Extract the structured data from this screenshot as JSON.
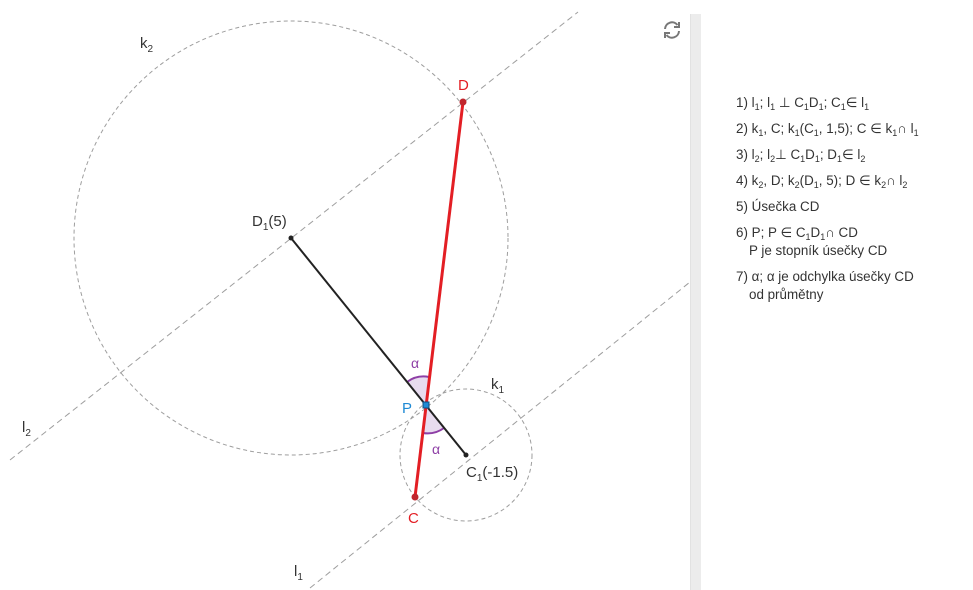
{
  "canvas": {
    "labels": {
      "k2": {
        "base": "k",
        "sub": "2"
      },
      "k1": {
        "base": "k",
        "sub": "1"
      },
      "l2": {
        "base": "l",
        "sub": "2"
      },
      "l1": {
        "base": "l",
        "sub": "1"
      },
      "D": "D",
      "C": "C",
      "P": "P",
      "alpha_top": "α",
      "alpha_bottom": "α",
      "D1": {
        "base": "D",
        "sub": "1",
        "rest": "(5)"
      },
      "C1": {
        "base": "C",
        "sub": "1",
        "rest": "(-1.5)"
      }
    },
    "colors": {
      "segment_cd": "#e31e24",
      "point_cd": "#c0262d",
      "point_p": "#1f8ad4",
      "label_p": "#1f8ad4",
      "angle": "#8e3fa6",
      "angle_fill": "#d9c6e2",
      "dashed": "#9e9e9e",
      "segment_c1d1": "#222222"
    }
  },
  "toolbar": {
    "refresh_icon": "refresh-icon"
  },
  "steps": {
    "s1": {
      "n": "1)",
      "p1": "l",
      "s1": "1",
      "p2": "; l",
      "s2": "1",
      "p3": "⊥ C",
      "s3": "1",
      "p4": "D",
      "s4": "1",
      "p5": "; C",
      "s5": "1",
      "p6": "∈ l",
      "s6": "1"
    },
    "s2": {
      "n": "2)",
      "p1": "k",
      "s1": "1",
      "p2": ", C; k",
      "s2": "1",
      "p3": "(C",
      "s3": "1",
      "p4": ", 1,5); C ∈ k",
      "s4": "1",
      "p5": "∩ l",
      "s5": "1"
    },
    "s3": {
      "n": "3)",
      "p1": "l",
      "s1": "2",
      "p2": "; l",
      "s2": "2",
      "p3": "⊥ C",
      "s3": "1",
      "p4": "D",
      "s4": "1",
      "p5": "; D",
      "s5": "1",
      "p6": "∈ l",
      "s6": "2"
    },
    "s4": {
      "n": "4)",
      "p1": "k",
      "s1": "2",
      "p2": ", D; k",
      "s2": "2",
      "p3": "(D",
      "s3": "1",
      "p4": ", 5); D ∈ k",
      "s4": "2",
      "p5": "∩ l",
      "s5": "2"
    },
    "s5": {
      "n": "5)",
      "text": "Úsečka CD"
    },
    "s6": {
      "n": "6)",
      "p1": "P; P ∈ C",
      "s1": "1",
      "p2": "D",
      "s2": "1",
      "p3": "∩ CD",
      "line2": "P je stopník úsečky CD"
    },
    "s7": {
      "n": "7)",
      "text": "α; α je odchylka úsečky CD",
      "line2": "od průmětny"
    }
  }
}
